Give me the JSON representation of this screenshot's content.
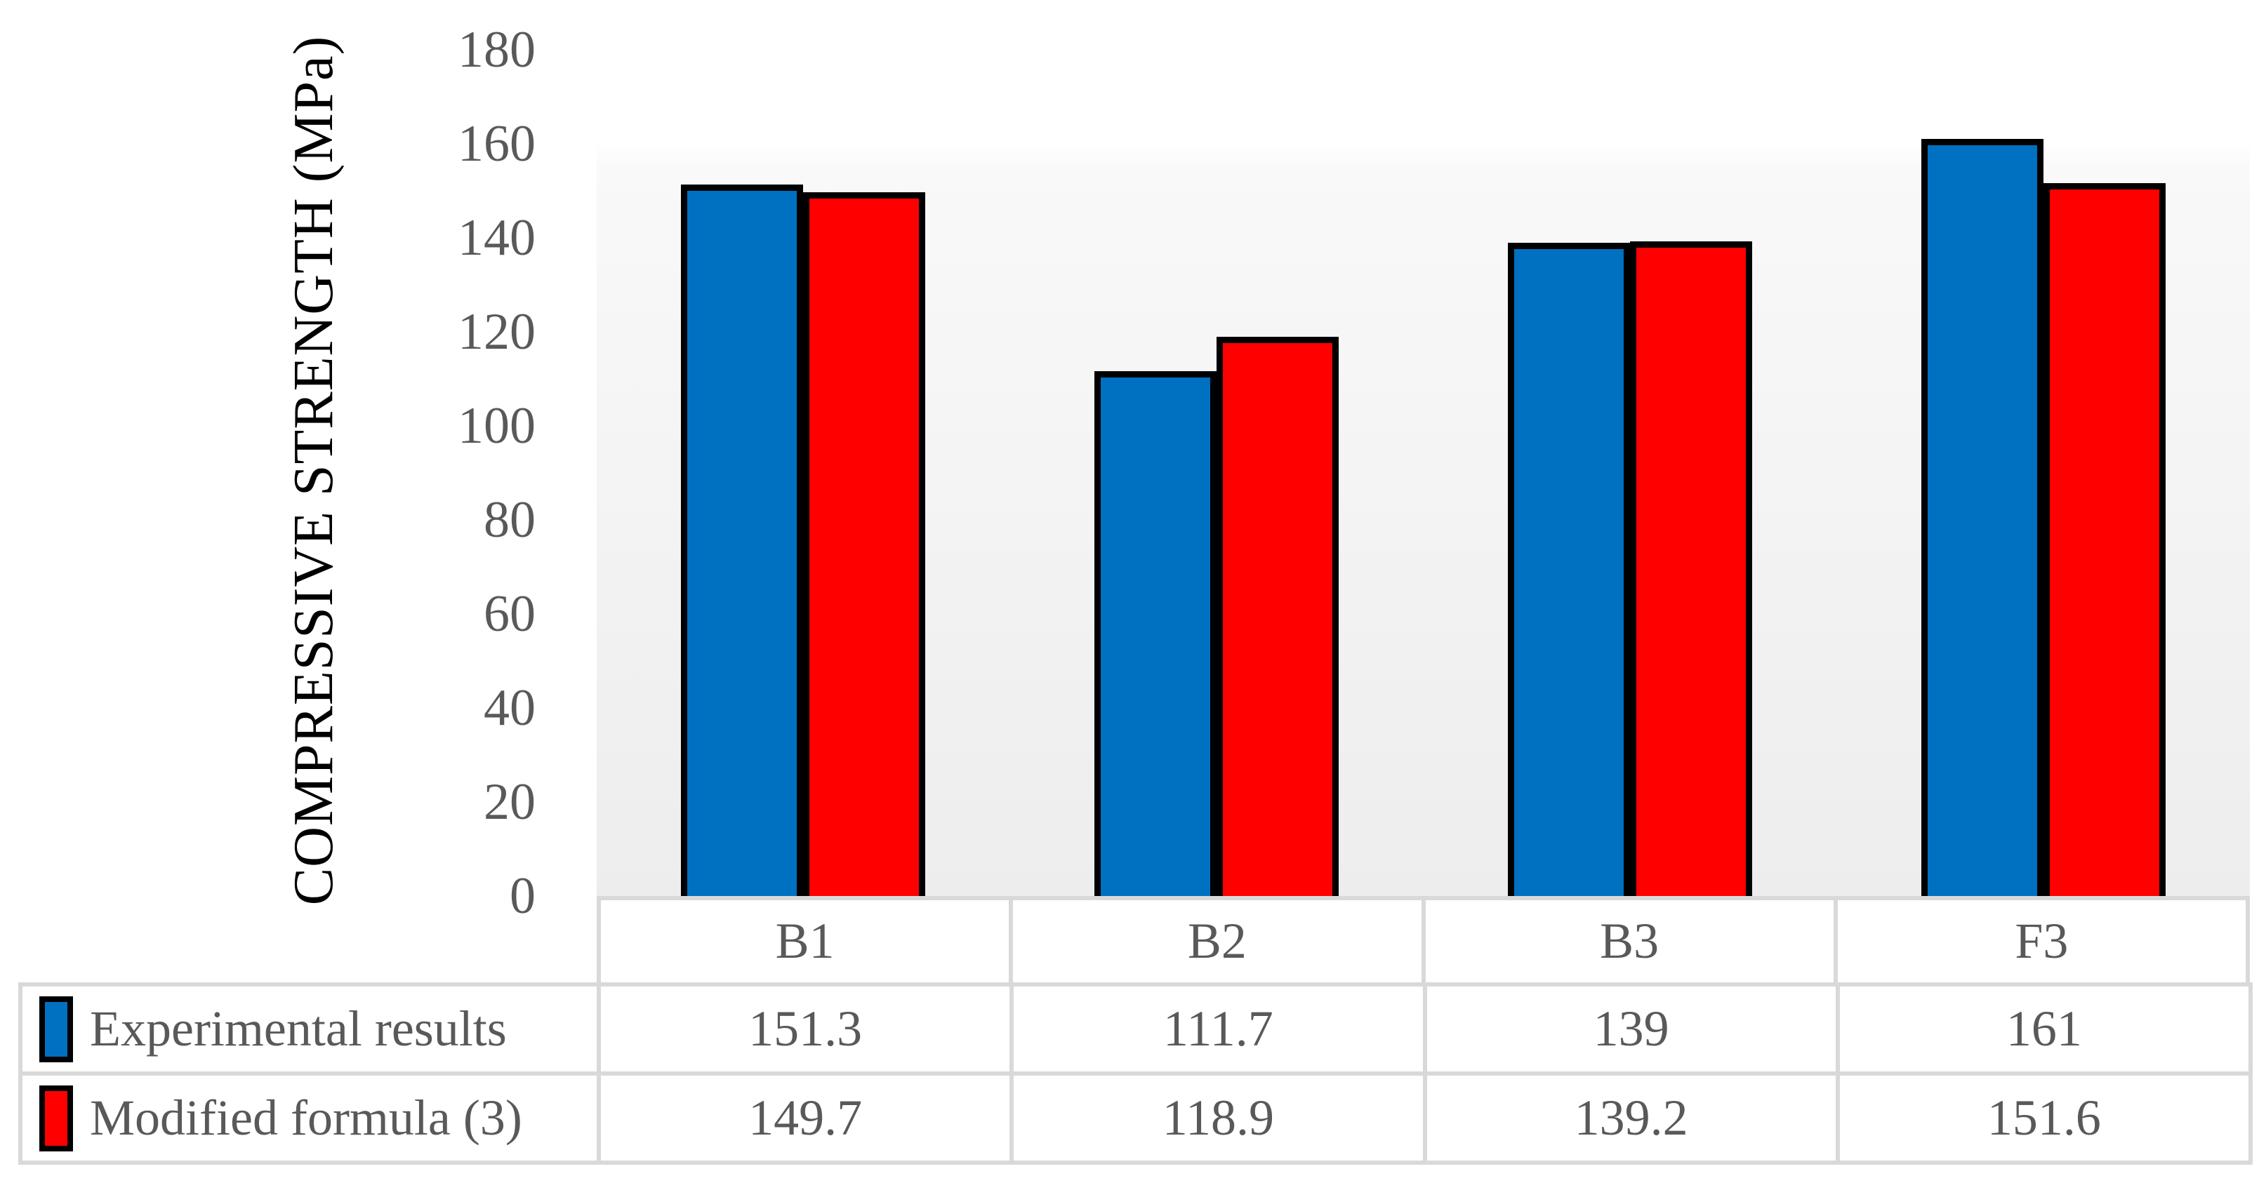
{
  "chart_data": {
    "type": "bar",
    "title": "",
    "categories": [
      "B1",
      "B2",
      "B3",
      "F3"
    ],
    "series": [
      {
        "name": "Experimental results",
        "color": "#0070C0",
        "values": [
          151.3,
          111.7,
          139,
          161
        ]
      },
      {
        "name": "Modified formula (3)",
        "color": "#FF0000",
        "values": [
          149.7,
          118.9,
          139.2,
          151.6
        ]
      }
    ],
    "xlabel": "",
    "ylabel": "COMPRESSIVE STRENGTH (MPa)",
    "ylim": [
      0,
      180
    ],
    "ytick_step": 20,
    "yticks": [
      0,
      20,
      40,
      60,
      80,
      100,
      120,
      140,
      160,
      180
    ],
    "grid": false,
    "legend_position": "data-table-left",
    "colors": {
      "bar_border": "#000000",
      "table_line": "#D9D9D9",
      "tick_text": "#595959",
      "table_text": "#595959",
      "axis_title_text": "#000000",
      "plot_bg_bottom": "#EDEDED",
      "page_bg": "#FFFFFF"
    }
  }
}
